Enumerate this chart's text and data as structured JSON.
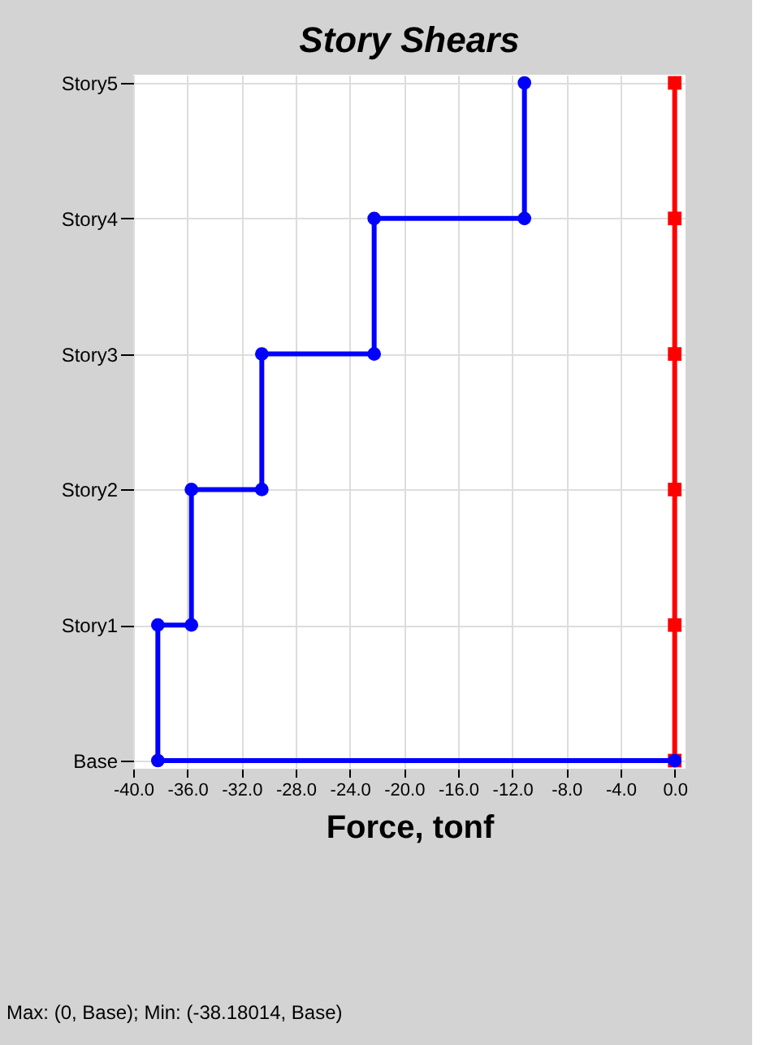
{
  "chart_data": {
    "type": "step",
    "orientation": "horizontal",
    "title": "Story Shears",
    "xlabel": "Force, tonf",
    "categories": [
      "Story5",
      "Story4",
      "Story3",
      "Story2",
      "Story1",
      "Base"
    ],
    "xlim": [
      -40,
      0.8
    ],
    "xticks": [
      {
        "value": -40,
        "label": "-40.0"
      },
      {
        "value": -36,
        "label": "-36.0"
      },
      {
        "value": -32,
        "label": "-32.0"
      },
      {
        "value": -28,
        "label": "-28.0"
      },
      {
        "value": -24,
        "label": "-24.0"
      },
      {
        "value": -20,
        "label": "-20.0"
      },
      {
        "value": -16,
        "label": "-16.0"
      },
      {
        "value": -12,
        "label": "-12.0"
      },
      {
        "value": -8,
        "label": "-8.0"
      },
      {
        "value": -4,
        "label": "-4.0"
      },
      {
        "value": 0,
        "label": "0.0"
      }
    ],
    "series": [
      {
        "type": "line",
        "color": "#ff0000",
        "marker": "square",
        "values": [
          0,
          0,
          0,
          0,
          0,
          0
        ]
      },
      {
        "color": "#0000ff",
        "marker": "circle",
        "values": [
          -11.1,
          -22.2,
          -30.5,
          -35.7,
          -38.18,
          0
        ]
      },
      {
        "type": "scatter",
        "color": "#0000ff",
        "marker": "circle",
        "values": [
          null,
          -11.1,
          -22.2,
          -30.5,
          -35.7,
          -38.18
        ]
      }
    ],
    "grid": true,
    "annotations": [
      "Max: (0, Base);   Min: (-38.18014, Base)"
    ]
  }
}
